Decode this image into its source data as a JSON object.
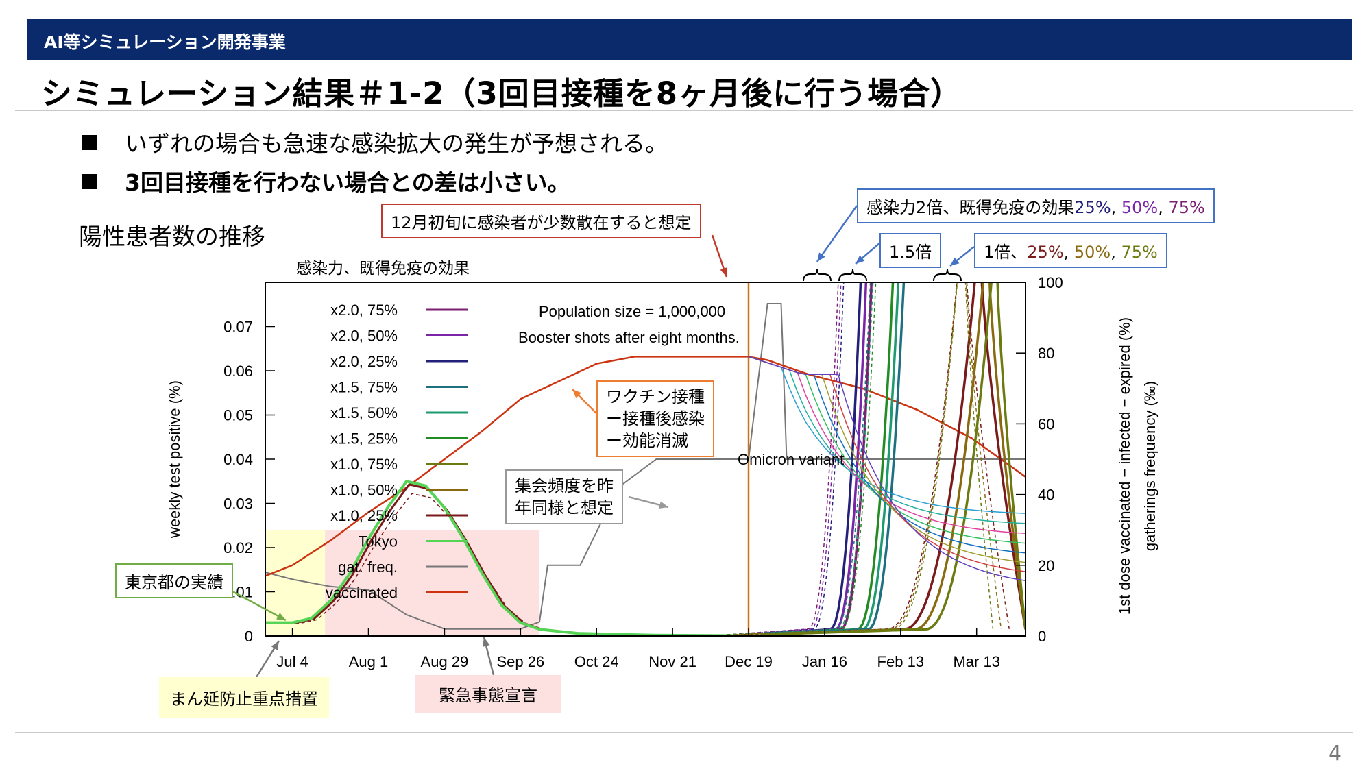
{
  "header": {
    "section": "AI等シミュレーション開発事業",
    "title": "シミュレーション結果＃1-2（3回目接種を8ヶ月後に行う場合）"
  },
  "bullets": [
    "いずれの場合も急速な感染拡大の発生が予想される。",
    "3回目接種を行わない場合との差は小さい。"
  ],
  "subheading": "陽性患者数の推移",
  "page_number": "4",
  "annotations": {
    "december_seed": "12月初旬に感染者が少数散在すると想定",
    "x2_group": {
      "prefix": "感染力2倍、既得免疫の効果",
      "p25": "25%",
      "p50": "50%",
      "p75": "75%",
      "sep": ", "
    },
    "x15_group": "1.5倍",
    "x1_group": {
      "prefix": "1倍、",
      "p25": "25%",
      "p50": "50%",
      "p75": "75%",
      "sep": ", "
    },
    "vaccine_box": [
      "ワクチン接種",
      "ー接種後感染",
      "ー効能消滅"
    ],
    "gathering_box": [
      "集会頻度を昨",
      "年同様と想定"
    ],
    "tokyo_actual": "東京都の実績",
    "manen_boshi": "まん延防止重点措置",
    "emergency": "緊急事態宣言"
  },
  "colors": {
    "header_bar": "#0a2a6b",
    "tokyo": "#55d455",
    "vaccinated": "#cc3311",
    "gat_freq": "#777777",
    "manen_shade": "#ffffd0",
    "emergency_shade": "#fde0e0",
    "box_blue": "#4472c4",
    "box_red": "#c0392b",
    "box_orange": "#ed7d31",
    "box_green": "#70ad47",
    "box_gray": "#999999"
  },
  "chart_data": {
    "type": "line",
    "title": "感染力、既得免疫の効果",
    "ylabel": "weekly test positive (%)",
    "y2label": [
      "1st dose vaccinated − infected − expired (%)",
      "gatherings frequency (‰)"
    ],
    "x_ticks": [
      "Jul 4",
      "Aug 1",
      "Aug 29",
      "Sep 26",
      "Oct 24",
      "Nov 21",
      "Dec 19",
      "Jan 16",
      "Feb 13",
      "Mar 13"
    ],
    "x_range_days": [
      -10,
      270
    ],
    "ylim": [
      0,
      0.08
    ],
    "y_ticks": [
      "0",
      "0.01",
      "0.02",
      "0.03",
      "0.04",
      "0.05",
      "0.06",
      "0.07"
    ],
    "y2lim": [
      0,
      100
    ],
    "y2_ticks": [
      "0",
      "20",
      "40",
      "60",
      "80",
      "100"
    ],
    "texts": {
      "population": "Population size = 1,000,000",
      "booster": "Booster shots after eight months.",
      "omicron": "Omicron variant"
    },
    "legend": [
      {
        "name": "x2.0, 75%",
        "color": "#7b1f70"
      },
      {
        "name": "x2.0, 50%",
        "color": "#7a25a8"
      },
      {
        "name": "x2.0, 25%",
        "color": "#23207a"
      },
      {
        "name": "x1.5, 75%",
        "color": "#1e6f80"
      },
      {
        "name": "x1.5, 50%",
        "color": "#1c9a72"
      },
      {
        "name": "x1.5, 25%",
        "color": "#228b22"
      },
      {
        "name": "x1.0, 75%",
        "color": "#6b7b10"
      },
      {
        "name": "x1.0, 50%",
        "color": "#8a6a10"
      },
      {
        "name": "x1.0, 25%",
        "color": "#7a1a1a"
      },
      {
        "name": "Tokyo",
        "color": "#55d455"
      },
      {
        "name": "gat. freq.",
        "color": "#777777"
      },
      {
        "name": "vaccinated",
        "color": "#cc3311"
      }
    ],
    "vline_day": 168,
    "shade_manen": [
      -10,
      12
    ],
    "shade_emergency": [
      12,
      91
    ],
    "tokyo_points": [
      [
        -10,
        0.003
      ],
      [
        0,
        0.003
      ],
      [
        7,
        0.004
      ],
      [
        14,
        0.008
      ],
      [
        21,
        0.014
      ],
      [
        28,
        0.022
      ],
      [
        35,
        0.029
      ],
      [
        42,
        0.035
      ],
      [
        49,
        0.034
      ],
      [
        56,
        0.029
      ],
      [
        63,
        0.022
      ],
      [
        70,
        0.014
      ],
      [
        77,
        0.007
      ],
      [
        84,
        0.003
      ],
      [
        91,
        0.0015
      ],
      [
        105,
        0.0006
      ],
      [
        133,
        0.0002
      ],
      [
        160,
        0.0001
      ],
      [
        170,
        0.0001
      ]
    ],
    "waves": [
      {
        "series": "x2.0, 25%",
        "rise_day": 198,
        "peak_day": 210,
        "fall_end": null
      },
      {
        "series": "x2.0, 50%",
        "rise_day": 200,
        "peak_day": 212,
        "fall_end": null
      },
      {
        "series": "x2.0, 75%",
        "rise_day": 202,
        "peak_day": 214,
        "fall_end": null
      },
      {
        "series": "x1.5, 25%",
        "rise_day": 208,
        "peak_day": 222,
        "fall_end": null
      },
      {
        "series": "x1.5, 50%",
        "rise_day": 210,
        "peak_day": 224,
        "fall_end": null
      },
      {
        "series": "x1.5, 75%",
        "rise_day": 212,
        "peak_day": 226,
        "fall_end": null
      },
      {
        "series": "x1.0, 25%",
        "rise_day": 225,
        "peak_day": 253,
        "fall_end": 270
      },
      {
        "series": "x1.0, 50%",
        "rise_day": 229,
        "peak_day": 256,
        "fall_end": 270
      },
      {
        "series": "x1.0, 75%",
        "rise_day": 233,
        "peak_day": 259,
        "fall_end": 270
      }
    ],
    "vaccinated_points": [
      [
        -10,
        17
      ],
      [
        0,
        20
      ],
      [
        14,
        27
      ],
      [
        28,
        35
      ],
      [
        42,
        42
      ],
      [
        56,
        50
      ],
      [
        70,
        58
      ],
      [
        84,
        67
      ],
      [
        98,
        72
      ],
      [
        112,
        77
      ],
      [
        126,
        79
      ],
      [
        140,
        79
      ],
      [
        154,
        79
      ],
      [
        168,
        79
      ],
      [
        175,
        78
      ],
      [
        190,
        74
      ],
      [
        210,
        70
      ],
      [
        230,
        64
      ],
      [
        250,
        56
      ],
      [
        270,
        45
      ]
    ],
    "gatfreq_points": [
      [
        -10,
        18
      ],
      [
        0,
        16
      ],
      [
        14,
        14
      ],
      [
        28,
        13
      ],
      [
        42,
        6
      ],
      [
        56,
        2
      ],
      [
        70,
        2
      ],
      [
        84,
        2
      ],
      [
        91,
        4
      ],
      [
        94,
        20
      ],
      [
        106,
        20
      ],
      [
        120,
        42
      ],
      [
        134,
        50
      ],
      [
        150,
        50
      ],
      [
        168,
        50
      ],
      [
        175,
        94
      ],
      [
        180,
        94
      ],
      [
        182,
        50
      ],
      [
        270,
        50
      ]
    ]
  }
}
